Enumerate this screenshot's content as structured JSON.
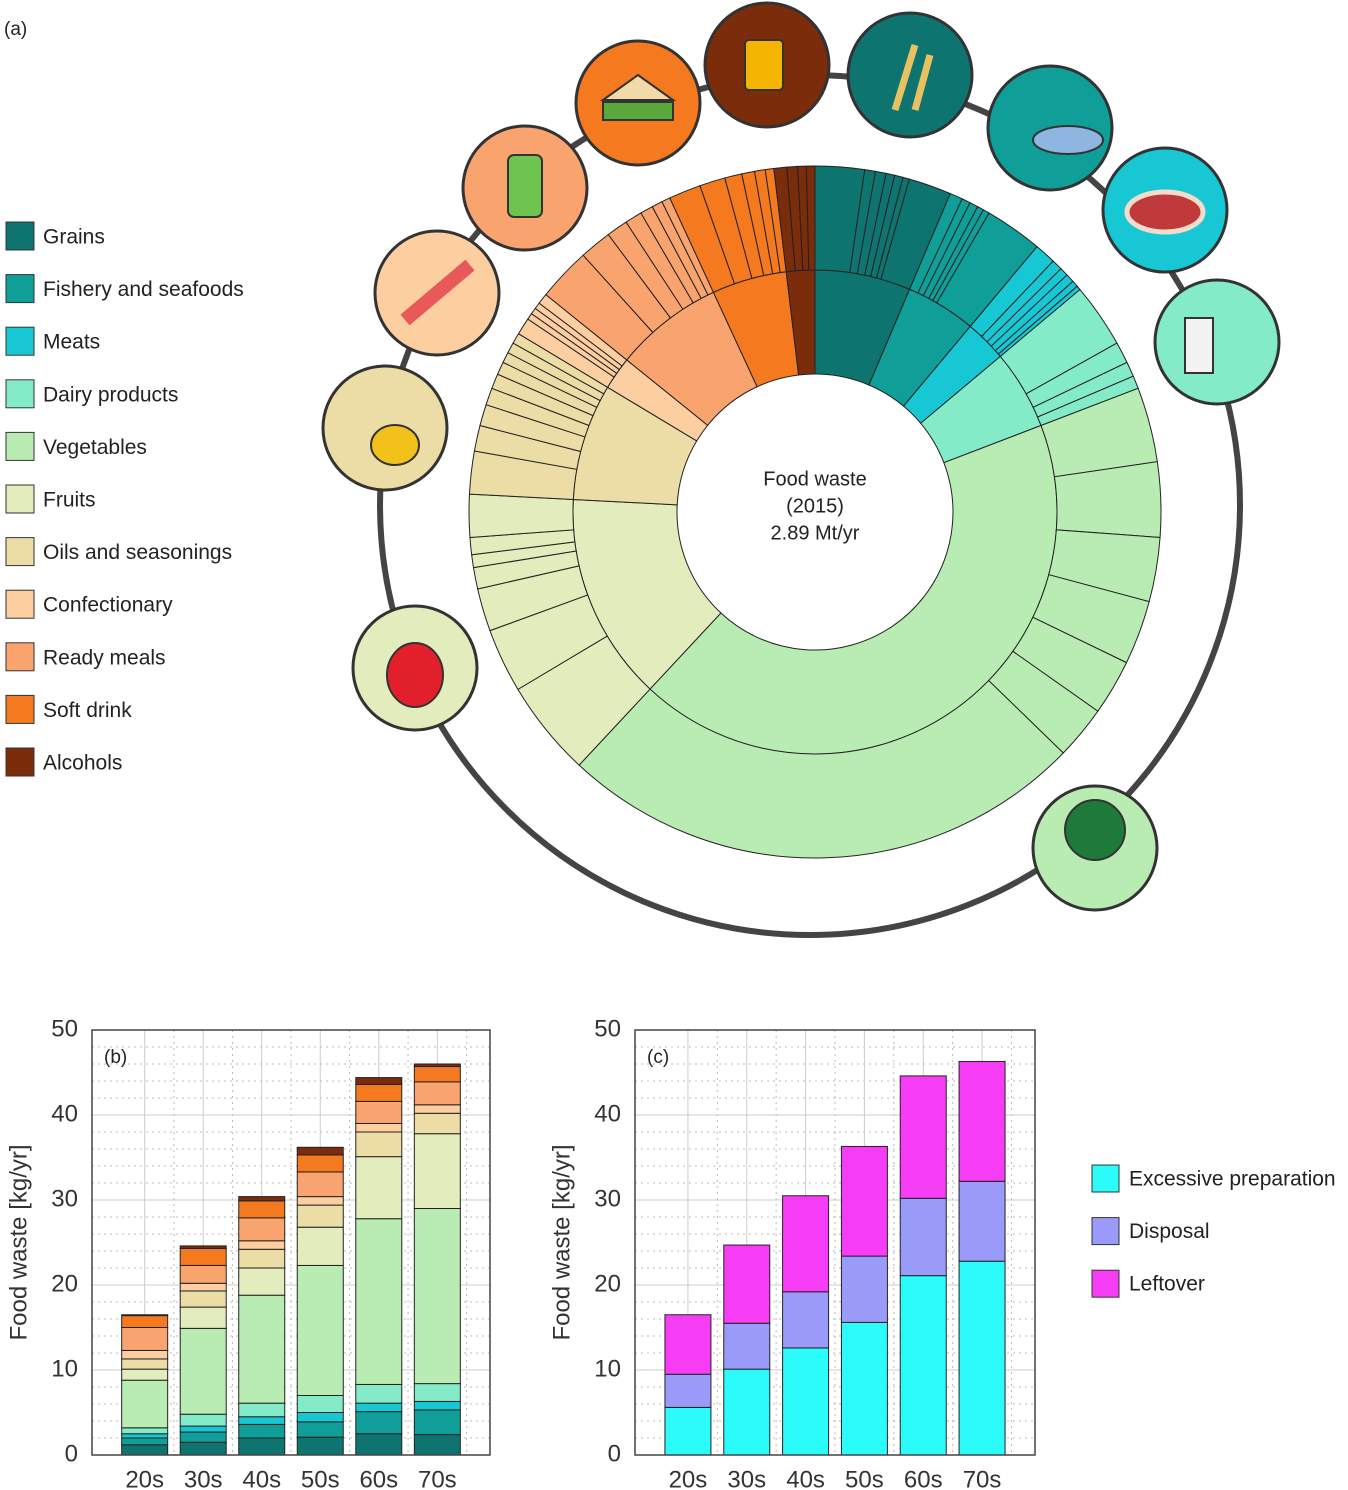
{
  "chart_data": [
    {
      "type": "sunburst",
      "label": "(a)",
      "center_text": [
        "Food waste",
        "(2015)",
        "2.89 Mt/yr"
      ],
      "categories": [
        "Grains",
        "Fishery and seafoods",
        "Meats",
        "Dairy products",
        "Vegetables",
        "Fruits",
        "Oils and seasonings",
        "Confectionary",
        "Ready meals",
        "Soft drink",
        "Alcohols"
      ],
      "colors": [
        "#0e7470",
        "#0f9f98",
        "#17c8d4",
        "#84ebc9",
        "#b9ecb3",
        "#e2ecbd",
        "#ecdca6",
        "#fdcfa0",
        "#f9a36e",
        "#f5791f",
        "#7b2c0a"
      ],
      "values": [
        6.4,
        4.7,
        2.8,
        5.3,
        42.8,
        13.9,
        7.8,
        2.2,
        7.3,
        5.0,
        1.9
      ],
      "sub_values": [
        [
          2.3,
          0.5,
          0.5,
          0.4,
          0.4,
          0.3,
          2.0
        ],
        [
          0.6,
          0.4,
          0.4,
          0.3,
          0.3,
          2.7
        ],
        [
          1.0,
          0.5,
          0.4,
          0.4,
          0.3,
          0.2
        ],
        [
          3.0,
          1.0,
          0.7,
          0.6
        ],
        [
          3.5,
          3.5,
          3.0,
          3.0,
          2.6,
          2.5,
          24.7
        ],
        [
          4.5,
          3.0,
          2.0,
          1.0,
          0.6,
          0.8,
          2.0
        ],
        [
          2.0,
          1.2,
          1.0,
          0.8,
          0.7,
          0.6,
          0.5,
          0.5,
          0.5
        ],
        [
          0.8,
          0.3,
          0.3,
          0.3,
          0.5
        ],
        [
          2.5,
          1.5,
          1.0,
          0.8,
          0.6,
          0.5,
          0.4
        ],
        [
          1.5,
          1.2,
          0.8,
          0.6,
          0.5,
          0.4
        ],
        [
          0.6,
          0.5,
          0.4,
          0.4
        ]
      ]
    },
    {
      "type": "stacked_bar",
      "label": "(b)",
      "ylabel": "Food waste [kg/yr]",
      "categories": [
        "20s",
        "30s",
        "40s",
        "50s",
        "60s",
        "70s"
      ],
      "series": [
        {
          "values": [
            1.2,
            1.5,
            2.0,
            2.1,
            2.5,
            2.4
          ]
        },
        {
          "values": [
            0.8,
            1.2,
            1.6,
            1.8,
            2.6,
            2.9
          ]
        },
        {
          "values": [
            0.5,
            0.7,
            0.9,
            1.1,
            1.0,
            1.0
          ]
        },
        {
          "values": [
            0.7,
            1.4,
            1.6,
            2.0,
            2.2,
            2.1
          ]
        },
        {
          "values": [
            5.6,
            10.1,
            12.7,
            15.3,
            19.5,
            20.6
          ]
        },
        {
          "values": [
            1.3,
            2.5,
            3.2,
            4.5,
            7.3,
            8.8
          ]
        },
        {
          "values": [
            1.2,
            1.9,
            2.2,
            2.6,
            2.9,
            2.4
          ]
        },
        {
          "values": [
            1.0,
            0.9,
            1.0,
            1.0,
            1.0,
            1.0
          ]
        },
        {
          "values": [
            2.7,
            2.1,
            2.7,
            2.9,
            2.6,
            2.7
          ]
        },
        {
          "values": [
            1.4,
            2.0,
            2.0,
            2.0,
            2.0,
            1.8
          ]
        },
        {
          "values": [
            0.1,
            0.3,
            0.5,
            0.9,
            0.8,
            0.3
          ]
        }
      ],
      "ylim": [
        0,
        50
      ],
      "yticks": [
        0,
        10,
        20,
        30,
        40,
        50
      ],
      "grid": true
    },
    {
      "type": "stacked_bar",
      "label": "(c)",
      "ylabel": "Food waste [kg/yr]",
      "categories": [
        "20s",
        "30s",
        "40s",
        "50s",
        "60s",
        "70s"
      ],
      "series": [
        {
          "name": "Excessive preparation",
          "color": "#2bfcf9",
          "values": [
            5.6,
            10.1,
            12.6,
            15.6,
            21.1,
            22.8
          ]
        },
        {
          "name": "Disposal",
          "color": "#9a9af8",
          "values": [
            3.9,
            5.4,
            6.6,
            7.8,
            9.1,
            9.4
          ]
        },
        {
          "name": "Leftover",
          "color": "#f73cf5",
          "values": [
            7.0,
            9.2,
            11.3,
            12.9,
            14.4,
            14.1
          ]
        }
      ],
      "ylim": [
        0,
        50
      ],
      "yticks": [
        0,
        10,
        20,
        30,
        40,
        50
      ],
      "grid": true,
      "legend": "right"
    }
  ]
}
